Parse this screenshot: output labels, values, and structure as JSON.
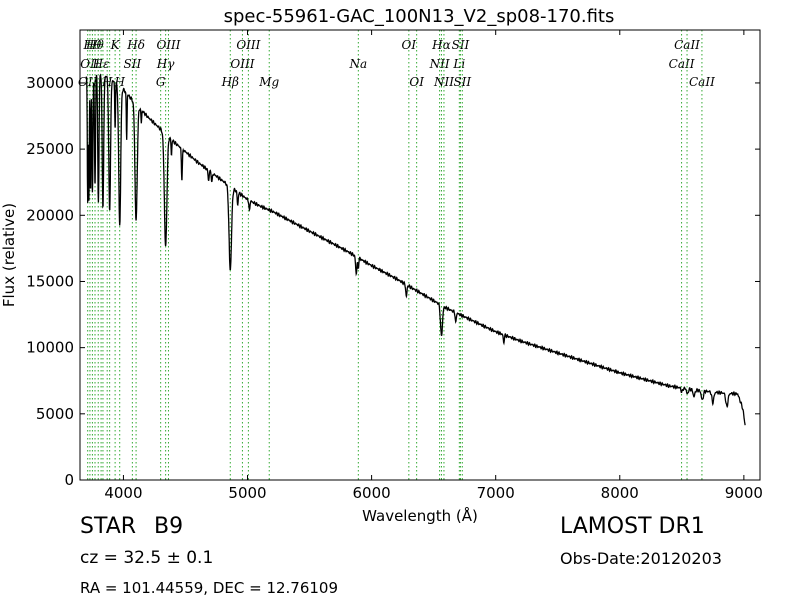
{
  "chart_data": {
    "type": "line",
    "title": "spec-55961-GAC_100N13_V2_sp08-170.fits",
    "xlabel": "Wavelength (Å)",
    "ylabel": "Flux (relative)",
    "xlim": [
      3650,
      9130
    ],
    "ylim": [
      0,
      34000
    ],
    "xticks": [
      4000,
      5000,
      6000,
      7000,
      8000,
      9000
    ],
    "yticks": [
      0,
      5000,
      10000,
      15000,
      20000,
      25000,
      30000
    ],
    "grid": false,
    "line_color": "#000000",
    "marker_line_color": "#33aa33",
    "continuum": [
      [
        3700,
        30500
      ],
      [
        3800,
        30800
      ],
      [
        3900,
        30300
      ],
      [
        4000,
        29500
      ],
      [
        4100,
        28400
      ],
      [
        4200,
        27400
      ],
      [
        4300,
        26500
      ],
      [
        4400,
        25600
      ],
      [
        4500,
        24800
      ],
      [
        4600,
        24000
      ],
      [
        4700,
        23300
      ],
      [
        4800,
        22600
      ],
      [
        4900,
        21900
      ],
      [
        5000,
        21200
      ],
      [
        5100,
        20700
      ],
      [
        5200,
        20300
      ],
      [
        5400,
        19300
      ],
      [
        5600,
        18300
      ],
      [
        5800,
        17300
      ],
      [
        6000,
        16200
      ],
      [
        6200,
        15200
      ],
      [
        6400,
        14100
      ],
      [
        6600,
        13000
      ],
      [
        6800,
        12100
      ],
      [
        7000,
        11200
      ],
      [
        7200,
        10500
      ],
      [
        7400,
        9900
      ],
      [
        7600,
        9300
      ],
      [
        7800,
        8700
      ],
      [
        8000,
        8100
      ],
      [
        8200,
        7600
      ],
      [
        8400,
        7100
      ],
      [
        8600,
        6800
      ],
      [
        8800,
        6600
      ],
      [
        8950,
        6500
      ],
      [
        9000,
        5200
      ]
    ],
    "absorption_lines": [
      {
        "wl": 3712,
        "depth": 9500,
        "width": 3
      },
      {
        "wl": 3722,
        "depth": 9500,
        "width": 3
      },
      {
        "wl": 3735,
        "depth": 9000,
        "width": 3
      },
      {
        "wl": 3750,
        "depth": 9000,
        "width": 4
      },
      {
        "wl": 3771,
        "depth": 8500,
        "width": 4
      },
      {
        "wl": 3798,
        "depth": 9800,
        "width": 5
      },
      {
        "wl": 3835,
        "depth": 10000,
        "width": 6
      },
      {
        "wl": 3889,
        "depth": 10000,
        "width": 7
      },
      {
        "wl": 3933,
        "depth": 3500,
        "width": 3
      },
      {
        "wl": 3970,
        "depth": 10500,
        "width": 8
      },
      {
        "wl": 4026,
        "depth": 3500,
        "width": 3
      },
      {
        "wl": 4102,
        "depth": 8800,
        "width": 9
      },
      {
        "wl": 4144,
        "depth": 1000,
        "width": 3
      },
      {
        "wl": 4340,
        "depth": 8500,
        "width": 10
      },
      {
        "wl": 4387,
        "depth": 1200,
        "width": 3
      },
      {
        "wl": 4471,
        "depth": 2300,
        "width": 4
      },
      {
        "wl": 4686,
        "depth": 800,
        "width": 4
      },
      {
        "wl": 4713,
        "depth": 700,
        "width": 4
      },
      {
        "wl": 4861,
        "depth": 6300,
        "width": 10
      },
      {
        "wl": 4921,
        "depth": 1000,
        "width": 4
      },
      {
        "wl": 5015,
        "depth": 800,
        "width": 4
      },
      {
        "wl": 5876,
        "depth": 1300,
        "width": 5
      },
      {
        "wl": 5892,
        "depth": 800,
        "width": 4
      },
      {
        "wl": 6280,
        "depth": 900,
        "width": 5
      },
      {
        "wl": 6563,
        "depth": 2300,
        "width": 8
      },
      {
        "wl": 6678,
        "depth": 800,
        "width": 4
      },
      {
        "wl": 7065,
        "depth": 600,
        "width": 4
      },
      {
        "wl": 8500,
        "depth": 300,
        "width": 6
      },
      {
        "wl": 8545,
        "depth": 400,
        "width": 6
      },
      {
        "wl": 8598,
        "depth": 500,
        "width": 7
      },
      {
        "wl": 8665,
        "depth": 700,
        "width": 8
      },
      {
        "wl": 8750,
        "depth": 800,
        "width": 8
      },
      {
        "wl": 8863,
        "depth": 1000,
        "width": 9
      },
      {
        "wl": 9015,
        "depth": 1200,
        "width": 10
      }
    ],
    "line_markers": [
      {
        "wl": 3712,
        "label": "OII",
        "row": 3
      },
      {
        "wl": 3730,
        "label": "OII",
        "row": 2
      },
      {
        "wl": 3750,
        "label": "Hθ",
        "row": 1
      },
      {
        "wl": 3771,
        "label": "Hθ",
        "row": 1
      },
      {
        "wl": 3797,
        "label": "",
        "row": 0
      },
      {
        "wl": 3820,
        "label": "Hε",
        "row": 2
      },
      {
        "wl": 3835,
        "label": "",
        "row": 0
      },
      {
        "wl": 3869,
        "label": "H",
        "row": 3
      },
      {
        "wl": 3889,
        "label": "",
        "row": 0
      },
      {
        "wl": 3933,
        "label": "K",
        "row": 1
      },
      {
        "wl": 3970,
        "label": "H",
        "row": 3
      },
      {
        "wl": 4072,
        "label": "SII",
        "row": 2
      },
      {
        "wl": 4102,
        "label": "Hδ",
        "row": 1
      },
      {
        "wl": 4300,
        "label": "G",
        "row": 3
      },
      {
        "wl": 4340,
        "label": "Hγ",
        "row": 2
      },
      {
        "wl": 4363,
        "label": "OIII",
        "row": 1
      },
      {
        "wl": 4861,
        "label": "Hβ",
        "row": 3
      },
      {
        "wl": 4959,
        "label": "OIII",
        "row": 2
      },
      {
        "wl": 5007,
        "label": "OIII",
        "row": 1
      },
      {
        "wl": 5175,
        "label": "Mg",
        "row": 3
      },
      {
        "wl": 5893,
        "label": "Na",
        "row": 2
      },
      {
        "wl": 6300,
        "label": "OI",
        "row": 1
      },
      {
        "wl": 6363,
        "label": "OI",
        "row": 3
      },
      {
        "wl": 6548,
        "label": "NII",
        "row": 2
      },
      {
        "wl": 6563,
        "label": "Hα",
        "row": 1
      },
      {
        "wl": 6583,
        "label": "NII",
        "row": 3
      },
      {
        "wl": 6707,
        "label": "Li",
        "row": 2
      },
      {
        "wl": 6716,
        "label": "SII",
        "row": 1
      },
      {
        "wl": 6731,
        "label": "SII",
        "row": 3
      },
      {
        "wl": 8498,
        "label": "CaII",
        "row": 2
      },
      {
        "wl": 8542,
        "label": "CaII",
        "row": 1
      },
      {
        "wl": 8662,
        "label": "CaII",
        "row": 3
      }
    ]
  },
  "info": {
    "object_class": "STAR",
    "subclass": "B9",
    "redshift_line": "cz = 32.5 ± 0.1",
    "coords_line": "RA = 101.44559, DEC = 12.76109",
    "survey": "LAMOST DR1",
    "obs_date": "Obs-Date:20120203"
  }
}
